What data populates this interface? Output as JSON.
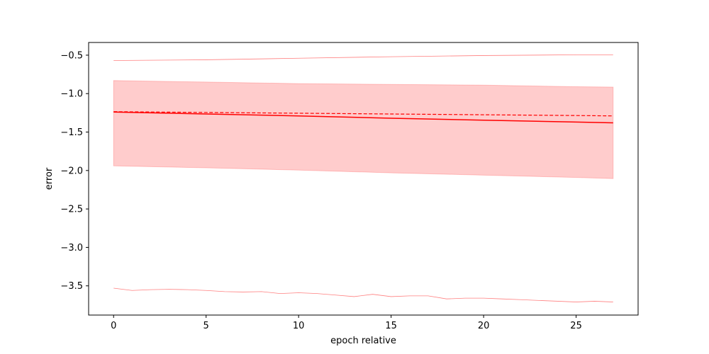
{
  "chart_data": {
    "type": "line",
    "title": "",
    "xlabel": "epoch relative",
    "ylabel": "error",
    "xlim": [
      -1.35,
      28.35
    ],
    "ylim": [
      -3.88,
      -0.335
    ],
    "xticks": [
      0,
      5,
      10,
      15,
      20,
      25
    ],
    "yticks": [
      -3.5,
      -3.0,
      -2.5,
      -2.0,
      -1.5,
      -1.0,
      -0.5
    ],
    "ytick_labels": [
      "−3.5",
      "−3.0",
      "−2.5",
      "−2.0",
      "−1.5",
      "−1.0",
      "−0.5"
    ],
    "grid": false,
    "legend": null,
    "colors": {
      "line": "#ff0000",
      "band_fill": "#ff0000",
      "band_fill_opacity": 0.2
    },
    "series": [
      {
        "role": "solid-line",
        "x": [
          0,
          5,
          10,
          15,
          20,
          25,
          27
        ],
        "y": [
          -1.24,
          -1.265,
          -1.29,
          -1.32,
          -1.345,
          -1.37,
          -1.38
        ]
      },
      {
        "role": "dashed-line",
        "x": [
          0,
          5,
          10,
          15,
          20,
          25,
          27
        ],
        "y": [
          -1.235,
          -1.245,
          -1.255,
          -1.265,
          -1.275,
          -1.285,
          -1.29
        ]
      },
      {
        "role": "band-upper",
        "x": [
          0,
          5,
          10,
          15,
          20,
          25,
          27
        ],
        "y": [
          -0.83,
          -0.85,
          -0.87,
          -0.88,
          -0.89,
          -0.91,
          -0.915
        ]
      },
      {
        "role": "band-lower",
        "x": [
          0,
          5,
          10,
          15,
          20,
          25,
          27
        ],
        "y": [
          -1.94,
          -1.965,
          -1.995,
          -2.03,
          -2.06,
          -2.09,
          -2.105
        ]
      },
      {
        "role": "max-line",
        "x": [
          0,
          5,
          10,
          15,
          20,
          25,
          27
        ],
        "y": [
          -0.57,
          -0.56,
          -0.54,
          -0.52,
          -0.505,
          -0.495,
          -0.495
        ]
      },
      {
        "role": "min-line",
        "x": [
          0,
          1,
          2,
          3,
          4,
          5,
          6,
          7,
          8,
          9,
          10,
          11,
          12,
          13,
          14,
          15,
          16,
          17,
          18,
          19,
          20,
          21,
          22,
          23,
          24,
          25,
          26,
          27
        ],
        "y": [
          -3.53,
          -3.56,
          -3.55,
          -3.545,
          -3.55,
          -3.56,
          -3.575,
          -3.58,
          -3.575,
          -3.6,
          -3.59,
          -3.6,
          -3.62,
          -3.64,
          -3.61,
          -3.64,
          -3.63,
          -3.63,
          -3.67,
          -3.66,
          -3.66,
          -3.67,
          -3.68,
          -3.69,
          -3.7,
          -3.71,
          -3.7,
          -3.71
        ]
      }
    ]
  }
}
